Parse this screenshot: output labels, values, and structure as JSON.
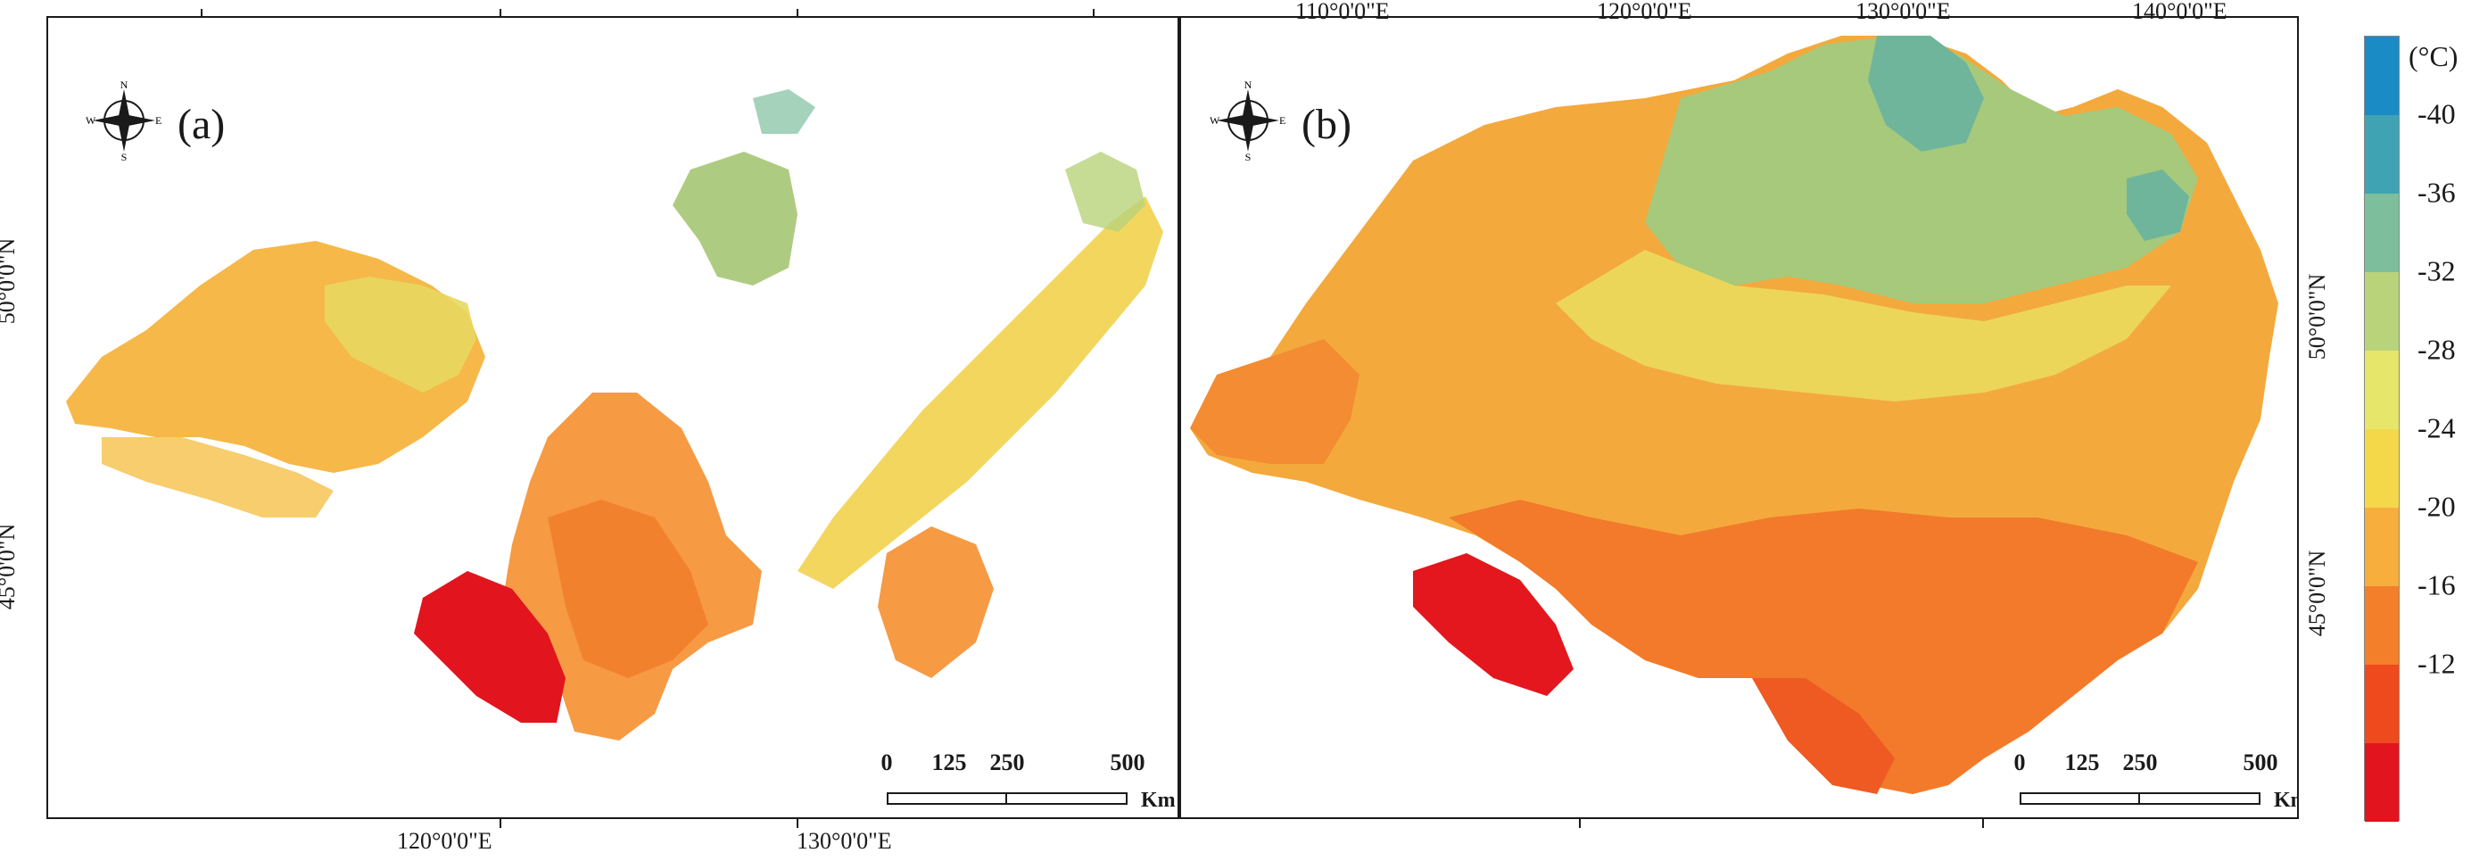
{
  "panels": [
    {
      "label": "(a)"
    },
    {
      "label": "(b)"
    }
  ],
  "compass": {
    "n": "N",
    "s": "S",
    "e": "E",
    "w": "W",
    "icon": "compass-rose-icon"
  },
  "scale_bar": {
    "ticks": [
      "0",
      "125",
      "250",
      "500"
    ],
    "unit": "Km"
  },
  "axes": {
    "bottom_a": [
      "120°0'0\"E",
      "130°0'0\"E"
    ],
    "top_b": [
      "110°0'0\"E",
      "120°0'0\"E",
      "130°0'0\"E",
      "140°0'0\"E"
    ],
    "left_a": [
      "50°0'0\"N",
      "45°0'0\"N"
    ],
    "right_b": [
      "50°0'0\"N",
      "45°0'0\"N"
    ]
  },
  "legend": {
    "unit": "(°C)",
    "labels": [
      "-40",
      "-36",
      "-32",
      "-28",
      "-24",
      "-20",
      "-16",
      "-12"
    ],
    "colors": [
      "#1a8bc4",
      "#3fa3b3",
      "#7dbf9c",
      "#b8d37a",
      "#e6e66a",
      "#f5d84a",
      "#f7ae3d",
      "#f47f2a",
      "#ee4a1e",
      "#e2141d"
    ]
  },
  "colors": {
    "frame": "#1a1a1a"
  }
}
